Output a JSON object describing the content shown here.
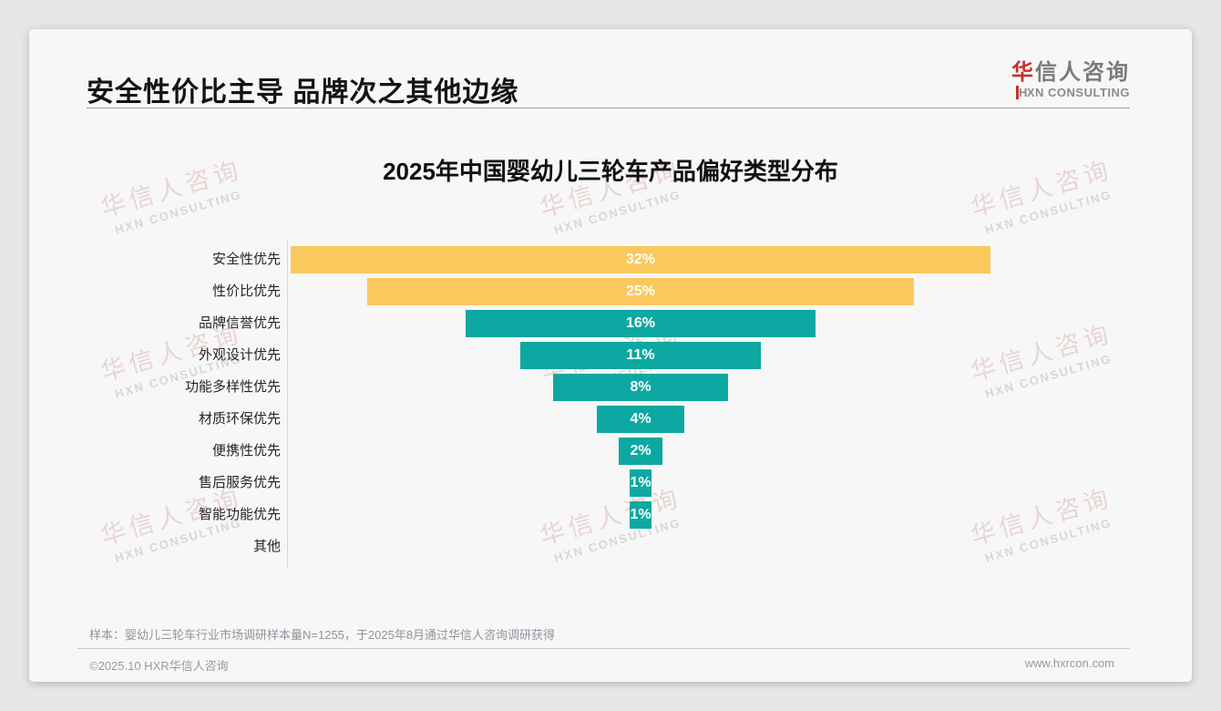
{
  "page": {
    "title": "安全性价比主导 品牌次之其他边缘",
    "logo": {
      "cn_first": "华",
      "cn_rest": "信人咨询",
      "en_first": "H",
      "en_rest": "XN CONSULTING"
    },
    "watermark": {
      "line1": "华信人咨询",
      "line2": "HXN CONSULTING"
    },
    "note": "样本：婴幼儿三轮车行业市场调研样本量N=1255，于2025年8月通过华信人咨询调研获得",
    "footer_left": "©2025.10 HXR华信人咨询",
    "footer_right": "www.hxrcon.com"
  },
  "colors": {
    "brand_red": "#C5322E",
    "accent_yellow": "#FAC85C",
    "accent_teal": "#0DA8A1",
    "bar_value_text": "#FFFFFF"
  },
  "chart_data": {
    "type": "bar",
    "orientation": "horizontal-centered-funnel",
    "title": "2025年中国婴幼儿三轮车产品偏好类型分布",
    "categories": [
      "安全性优先",
      "性价比优先",
      "品牌信誉优先",
      "外观设计优先",
      "功能多样性优先",
      "材质环保优先",
      "便携性优先",
      "售后服务优先",
      "智能功能优先",
      "其他"
    ],
    "values": [
      32,
      25,
      16,
      11,
      8,
      4,
      2,
      1,
      1,
      0
    ],
    "value_labels": [
      "32%",
      "25%",
      "16%",
      "11%",
      "8%",
      "4%",
      "2%",
      "1%",
      "1%",
      ""
    ],
    "unit": "%",
    "bar_colors": [
      "#FAC85C",
      "#FAC85C",
      "#0DA8A1",
      "#0DA8A1",
      "#0DA8A1",
      "#0DA8A1",
      "#0DA8A1",
      "#0DA8A1",
      "#0DA8A1",
      "#0DA8A1"
    ],
    "xlim": [
      0,
      32
    ],
    "legend": false,
    "grid": false
  }
}
